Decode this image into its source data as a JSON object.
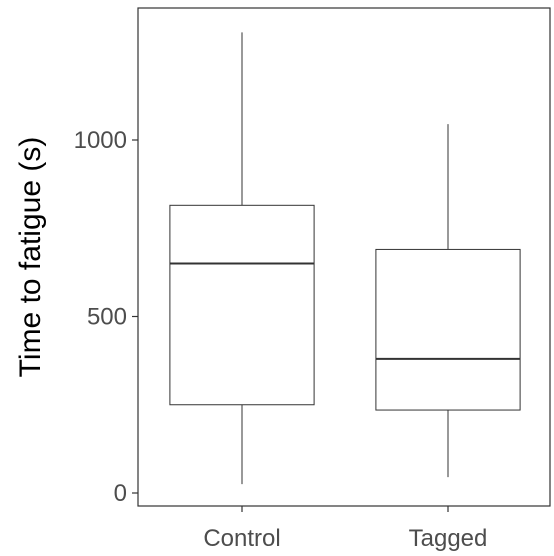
{
  "chart_data": {
    "type": "boxplot",
    "title": "",
    "xlabel": "",
    "ylabel": "Time to fatigue (s)",
    "ylim": [
      0,
      1360
    ],
    "yticks": [
      0,
      500,
      1000
    ],
    "grid": false,
    "categories": [
      "Control",
      "Tagged"
    ],
    "boxes": [
      {
        "category": "Control",
        "whisker_low": 25,
        "q1": 250,
        "median": 650,
        "q3": 815,
        "whisker_high": 1305
      },
      {
        "category": "Tagged",
        "whisker_low": 45,
        "q1": 235,
        "median": 380,
        "q3": 690,
        "whisker_high": 1045
      }
    ]
  }
}
